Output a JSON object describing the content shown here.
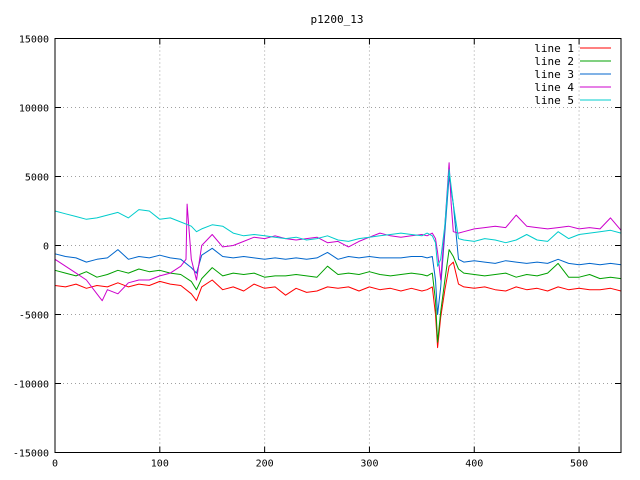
{
  "chart_data": {
    "type": "line",
    "title": "p1200_13",
    "xlabel": "",
    "ylabel": "",
    "xlim": [
      0,
      540
    ],
    "ylim": [
      -15000,
      15000
    ],
    "xticks": [
      0,
      100,
      200,
      300,
      400,
      500
    ],
    "yticks": [
      -15000,
      -10000,
      -5000,
      0,
      5000,
      10000,
      15000
    ],
    "grid": true,
    "legend_position": "top-right",
    "series": [
      {
        "name": "line 1",
        "color": "#ff0000",
        "x": [
          0,
          10,
          20,
          30,
          40,
          50,
          60,
          70,
          80,
          90,
          100,
          110,
          120,
          130,
          135,
          140,
          150,
          160,
          170,
          180,
          190,
          200,
          210,
          220,
          230,
          240,
          250,
          260,
          270,
          280,
          290,
          300,
          310,
          320,
          330,
          340,
          350,
          355,
          360,
          363,
          365,
          368,
          372,
          376,
          380,
          385,
          390,
          400,
          410,
          420,
          430,
          440,
          450,
          460,
          470,
          480,
          490,
          500,
          510,
          520,
          530,
          540
        ],
        "y": [
          -2900,
          -3000,
          -2800,
          -3100,
          -2900,
          -3000,
          -2700,
          -3000,
          -2800,
          -2900,
          -2600,
          -2800,
          -2900,
          -3500,
          -4000,
          -3000,
          -2500,
          -3200,
          -3000,
          -3300,
          -2800,
          -3100,
          -3000,
          -3600,
          -3100,
          -3400,
          -3300,
          -3000,
          -3100,
          -3000,
          -3300,
          -3000,
          -3200,
          -3100,
          -3300,
          -3100,
          -3300,
          -3200,
          -3000,
          -5000,
          -7400,
          -5200,
          -3200,
          -1500,
          -1200,
          -2800,
          -3000,
          -3100,
          -3000,
          -3200,
          -3300,
          -3000,
          -3200,
          -3100,
          -3300,
          -3000,
          -3200,
          -3100,
          -3200,
          -3200,
          -3100,
          -3300
        ]
      },
      {
        "name": "line 2",
        "color": "#00a000",
        "x": [
          0,
          10,
          20,
          30,
          40,
          50,
          60,
          70,
          80,
          90,
          100,
          110,
          120,
          130,
          135,
          140,
          150,
          160,
          170,
          180,
          190,
          200,
          210,
          220,
          230,
          240,
          250,
          260,
          270,
          280,
          290,
          300,
          310,
          320,
          330,
          340,
          350,
          355,
          360,
          363,
          365,
          368,
          372,
          376,
          380,
          385,
          390,
          400,
          410,
          420,
          430,
          440,
          450,
          460,
          470,
          480,
          490,
          500,
          510,
          520,
          530,
          540
        ],
        "y": [
          -1800,
          -2000,
          -2200,
          -1900,
          -2300,
          -2100,
          -1800,
          -2000,
          -1700,
          -1900,
          -1800,
          -2000,
          -2100,
          -2600,
          -3200,
          -2400,
          -1600,
          -2200,
          -2000,
          -2100,
          -2000,
          -2300,
          -2200,
          -2200,
          -2100,
          -2200,
          -2300,
          -1500,
          -2100,
          -2000,
          -2100,
          -1900,
          -2100,
          -2200,
          -2100,
          -2000,
          -2100,
          -2200,
          -2000,
          -4000,
          -7000,
          -4800,
          -2500,
          -300,
          -800,
          -1700,
          -2000,
          -2100,
          -2200,
          -2100,
          -2000,
          -2300,
          -2100,
          -2200,
          -2000,
          -1300,
          -2300,
          -2300,
          -2100,
          -2400,
          -2300,
          -2400
        ]
      },
      {
        "name": "line 3",
        "color": "#0066cc",
        "x": [
          0,
          10,
          20,
          30,
          40,
          50,
          60,
          70,
          80,
          90,
          100,
          110,
          120,
          130,
          135,
          140,
          150,
          160,
          170,
          180,
          190,
          200,
          210,
          220,
          230,
          240,
          250,
          260,
          270,
          280,
          290,
          300,
          310,
          320,
          330,
          340,
          350,
          355,
          360,
          363,
          365,
          368,
          372,
          376,
          380,
          385,
          390,
          400,
          410,
          420,
          430,
          440,
          450,
          460,
          470,
          480,
          490,
          500,
          510,
          520,
          530,
          540
        ],
        "y": [
          -600,
          -800,
          -900,
          -1200,
          -1000,
          -900,
          -300,
          -1000,
          -800,
          -900,
          -700,
          -900,
          -1000,
          -1600,
          -2000,
          -700,
          -200,
          -800,
          -900,
          -800,
          -900,
          -1000,
          -900,
          -1000,
          -900,
          -1000,
          -900,
          -500,
          -1000,
          -800,
          -900,
          -800,
          -900,
          -900,
          -900,
          -800,
          -800,
          -900,
          -800,
          -2500,
          -5000,
          -3000,
          1000,
          5000,
          3000,
          -1000,
          -1200,
          -1100,
          -1200,
          -1300,
          -1100,
          -1200,
          -1300,
          -1200,
          -1300,
          -1000,
          -1300,
          -1400,
          -1300,
          -1400,
          -1300,
          -1400
        ]
      },
      {
        "name": "line 4",
        "color": "#cc00cc",
        "x": [
          0,
          10,
          20,
          30,
          40,
          45,
          50,
          60,
          70,
          80,
          90,
          100,
          110,
          120,
          125,
          126,
          130,
          135,
          140,
          150,
          160,
          170,
          180,
          190,
          200,
          210,
          220,
          230,
          240,
          250,
          260,
          270,
          280,
          290,
          300,
          310,
          320,
          330,
          340,
          350,
          355,
          360,
          363,
          365,
          368,
          372,
          376,
          378,
          380,
          385,
          390,
          400,
          410,
          420,
          430,
          440,
          450,
          460,
          470,
          480,
          490,
          500,
          510,
          520,
          530,
          540
        ],
        "y": [
          -1000,
          -1500,
          -2000,
          -2500,
          -3500,
          -4000,
          -3200,
          -3500,
          -2700,
          -2500,
          -2500,
          -2200,
          -2000,
          -1500,
          -1000,
          3000,
          -1000,
          -2500,
          0,
          800,
          -100,
          0,
          300,
          600,
          500,
          700,
          500,
          400,
          500,
          600,
          200,
          300,
          -100,
          300,
          600,
          900,
          700,
          600,
          700,
          800,
          700,
          900,
          500,
          -500,
          -2500,
          1500,
          6000,
          3000,
          1000,
          900,
          1000,
          1200,
          1300,
          1400,
          1300,
          2200,
          1400,
          1300,
          1200,
          1300,
          1400,
          1200,
          1300,
          1200,
          2000,
          1100
        ]
      },
      {
        "name": "line 5",
        "color": "#00cccc",
        "x": [
          0,
          10,
          20,
          30,
          40,
          50,
          60,
          70,
          80,
          90,
          100,
          110,
          120,
          130,
          135,
          140,
          150,
          160,
          170,
          180,
          190,
          200,
          210,
          220,
          230,
          240,
          250,
          260,
          270,
          280,
          290,
          300,
          310,
          320,
          330,
          340,
          350,
          355,
          360,
          363,
          365,
          368,
          372,
          376,
          380,
          385,
          390,
          400,
          410,
          420,
          430,
          440,
          450,
          460,
          470,
          480,
          490,
          500,
          510,
          520,
          530,
          540
        ],
        "y": [
          2500,
          2300,
          2100,
          1900,
          2000,
          2200,
          2400,
          2000,
          2600,
          2500,
          1900,
          2000,
          1700,
          1400,
          1000,
          1200,
          1500,
          1400,
          900,
          700,
          800,
          700,
          600,
          500,
          600,
          400,
          500,
          700,
          400,
          300,
          500,
          600,
          700,
          800,
          900,
          800,
          700,
          900,
          700,
          200,
          -1500,
          -1000,
          1500,
          5500,
          3000,
          500,
          400,
          300,
          500,
          400,
          200,
          400,
          800,
          400,
          300,
          1000,
          500,
          800,
          900,
          1000,
          1100,
          900
        ]
      }
    ]
  }
}
